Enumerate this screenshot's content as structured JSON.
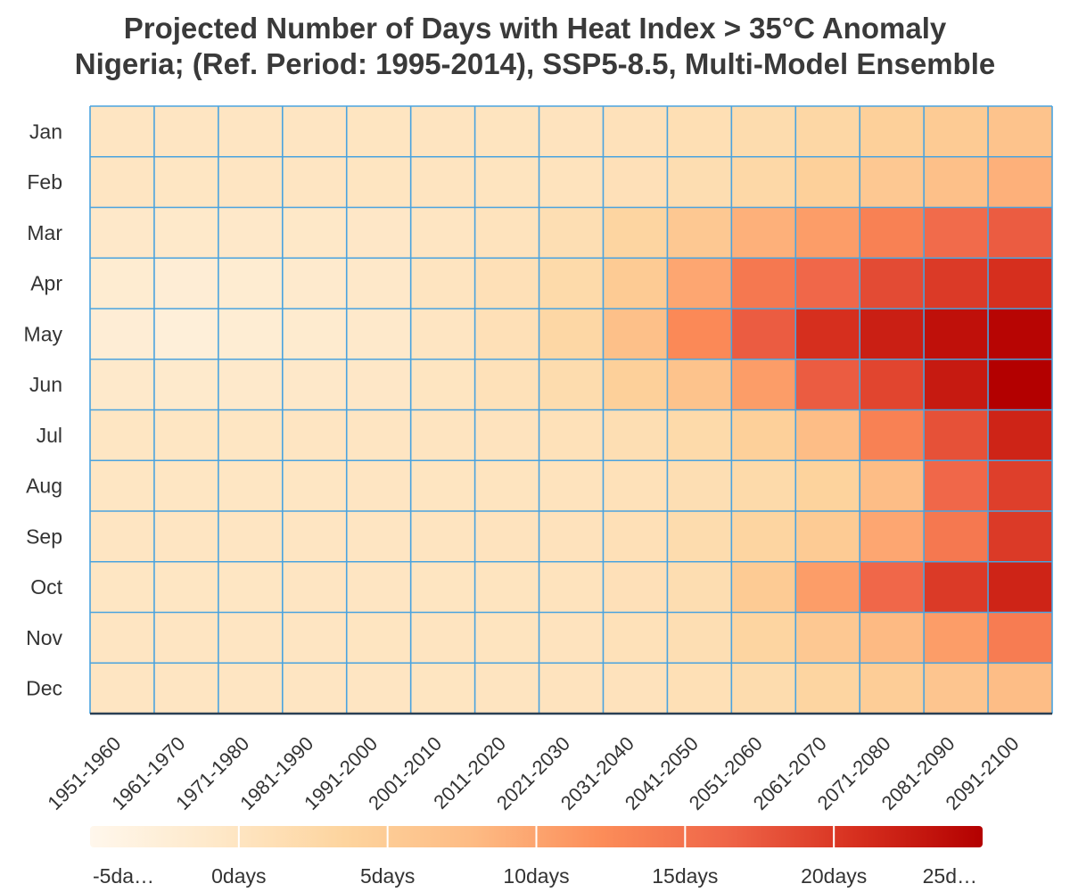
{
  "chart_data": {
    "type": "heatmap",
    "title": "Projected Number of Days with Heat Index > 35°C Anomaly",
    "subtitle": "Nigeria; (Ref. Period: 1995-2014), SSP5-8.5, Multi-Model Ensemble",
    "x_categories": [
      "1951-1960",
      "1961-1970",
      "1971-1980",
      "1981-1990",
      "1991-2000",
      "2001-2010",
      "2011-2020",
      "2021-2030",
      "2031-2040",
      "2041-2050",
      "2051-2060",
      "2061-2070",
      "2071-2080",
      "2081-2090",
      "2091-2100"
    ],
    "y_categories": [
      "Jan",
      "Feb",
      "Mar",
      "Apr",
      "May",
      "Jun",
      "Jul",
      "Aug",
      "Sep",
      "Oct",
      "Nov",
      "Dec"
    ],
    "values": [
      [
        0.3,
        0.3,
        0.3,
        0.3,
        0.4,
        0.5,
        0.6,
        0.8,
        1.2,
        1.8,
        2.5,
        3.5,
        5.0,
        6.0,
        7.5
      ],
      [
        0.3,
        0.2,
        0.3,
        0.3,
        0.4,
        0.5,
        0.6,
        0.9,
        1.4,
        2.2,
        3.3,
        5.0,
        6.5,
        8.0,
        10.0
      ],
      [
        -0.5,
        -0.6,
        -0.5,
        -0.4,
        -0.2,
        0.3,
        0.9,
        2.0,
        4.0,
        6.5,
        10.0,
        12.0,
        15.0,
        17.5,
        19.0
      ],
      [
        -1.5,
        -2.0,
        -1.5,
        -1.0,
        -0.5,
        0.5,
        1.5,
        3.0,
        6.0,
        11.0,
        16.0,
        18.0,
        20.5,
        22.0,
        23.0
      ],
      [
        -2.0,
        -2.5,
        -1.8,
        -1.2,
        -0.8,
        0.3,
        1.5,
        3.5,
        8.0,
        14.0,
        19.0,
        23.0,
        24.5,
        26.0,
        27.0
      ],
      [
        -0.8,
        -0.9,
        -0.7,
        -0.5,
        -0.2,
        0.4,
        1.3,
        2.5,
        5.0,
        7.5,
        12.0,
        19.0,
        21.0,
        25.0,
        27.5
      ],
      [
        0.2,
        0.2,
        0.2,
        0.3,
        0.3,
        0.5,
        0.8,
        1.3,
        2.0,
        3.0,
        5.0,
        8.5,
        15.0,
        20.0,
        24.0
      ],
      [
        0.2,
        0.2,
        0.2,
        0.2,
        0.3,
        0.4,
        0.6,
        0.9,
        1.3,
        2.0,
        3.0,
        4.5,
        8.5,
        18.0,
        21.5
      ],
      [
        0.3,
        0.3,
        0.3,
        0.3,
        0.3,
        0.5,
        0.7,
        1.0,
        1.5,
        2.5,
        4.0,
        6.0,
        11.0,
        16.0,
        22.0
      ],
      [
        0.2,
        0.2,
        0.2,
        0.3,
        0.3,
        0.4,
        0.6,
        0.9,
        1.4,
        2.2,
        6.0,
        12.0,
        18.0,
        22.0,
        24.0
      ],
      [
        0.3,
        0.3,
        0.3,
        0.3,
        0.4,
        0.5,
        0.6,
        0.8,
        1.3,
        2.0,
        4.0,
        6.5,
        9.0,
        12.0,
        15.5
      ],
      [
        0.3,
        0.3,
        0.3,
        0.3,
        0.3,
        0.4,
        0.5,
        0.7,
        1.0,
        1.6,
        2.5,
        4.0,
        5.5,
        7.0,
        8.5
      ]
    ],
    "colorbar": {
      "ticks": [
        "-5da…",
        "0days",
        "5days",
        "10days",
        "15days",
        "20days",
        "25d…"
      ],
      "range": [
        -5,
        27.5
      ],
      "colors": [
        "#fff7ec",
        "#fee8c8",
        "#fdd49e",
        "#fdbb84",
        "#fc8d59",
        "#ef6548",
        "#d7301f",
        "#b30000"
      ]
    },
    "grid": true,
    "grid_color": "#4aa3df"
  }
}
